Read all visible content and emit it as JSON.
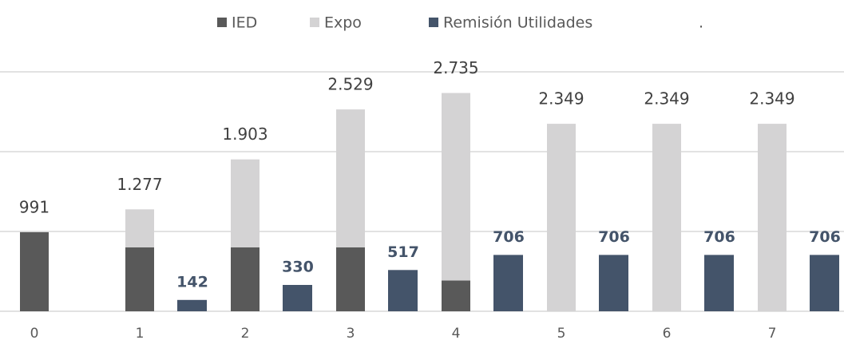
{
  "chart_data": {
    "type": "bar",
    "stacked": true,
    "categories": [
      "0",
      "1",
      "2",
      "3",
      "4",
      "5",
      "6",
      "7"
    ],
    "series": [
      {
        "name": "IED",
        "color": "#595959",
        "stack": "a",
        "values": [
          991,
          800,
          800,
          800,
          386,
          0,
          0,
          0
        ]
      },
      {
        "name": "Expo",
        "color": "#d4d3d4",
        "stack": "a",
        "values": [
          0,
          477,
          1103,
          1729,
          2349,
          2349,
          2349,
          2349
        ]
      },
      {
        "name": "Remisión Utilidades",
        "color": "#44546a",
        "stack": "b",
        "values": [
          null,
          142,
          330,
          517,
          706,
          706,
          706,
          706
        ]
      },
      {
        "name": ".",
        "color": "#ffffff",
        "stack": "c",
        "values": [
          null,
          null,
          null,
          null,
          null,
          null,
          null,
          null
        ]
      }
    ],
    "total_labels": [
      "991",
      "1.277",
      "1.903",
      "2.529",
      "2.735",
      "2.349",
      "2.349",
      "2.349"
    ],
    "ylim": [
      0,
      3000
    ],
    "yticks": [
      0,
      1000,
      2000,
      3000
    ],
    "grid": true
  }
}
